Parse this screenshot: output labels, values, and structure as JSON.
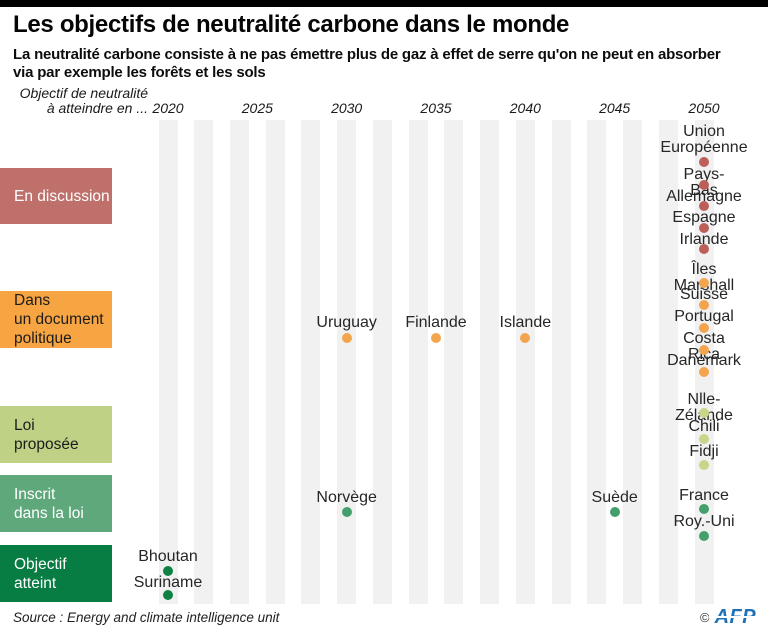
{
  "header": {
    "title": "Les objectifs de neutralité carbone dans le monde",
    "subtitle": "La neutralité carbone consiste à ne pas émettre plus de gaz à effet de serre qu'on ne peut en absorber\nvia par exemple les forêts et les sols"
  },
  "axis": {
    "label": "Objectif de neutralité\nà atteindre en ...",
    "years": [
      "2020",
      "2025",
      "2030",
      "2035",
      "2040",
      "2045",
      "2050"
    ]
  },
  "categories": [
    {
      "id": "en-discussion",
      "label": "En discussion",
      "label_text": "En discussion",
      "color": "#bf706b",
      "text_color": "#ffffff",
      "dot_color": "#bc5f58"
    },
    {
      "id": "document-politique",
      "label": "Dans un document politique",
      "label_text": "Dans\nun document\npolitique",
      "color": "#f6a542",
      "text_color": "#1c1c1c",
      "dot_color": "#f3a54e"
    },
    {
      "id": "loi-proposee",
      "label": "Loi proposée",
      "label_text": "Loi\nproposée",
      "color": "#bfd184",
      "text_color": "#1c1c1c",
      "dot_color": "#c7d687"
    },
    {
      "id": "inscrit-loi",
      "label": "Inscrit dans la loi",
      "label_text": "Inscrit\ndans la loi",
      "color": "#5fa87b",
      "text_color": "#ffffff",
      "dot_color": "#44a06b"
    },
    {
      "id": "objectif-atteint",
      "label": "Objectif atteint",
      "label_text": "Objectif\natteint",
      "color": "#077c43",
      "text_color": "#ffffff",
      "dot_color": "#0f8046"
    }
  ],
  "chart_data": {
    "type": "scatter",
    "title": "Les objectifs de neutralité carbone dans le monde",
    "x_ticks": [
      2020,
      2025,
      2030,
      2035,
      2040,
      2045,
      2050
    ],
    "x_range": [
      2020,
      2050
    ],
    "grid": "light vertical stripes every 2 years",
    "legend_position": "left",
    "points": [
      {
        "label": "Union\nEuropéenne",
        "name": "Union Européenne",
        "year": 2050,
        "status": "En discussion"
      },
      {
        "label": "Pays-Bas",
        "name": "Pays-Bas",
        "year": 2050,
        "status": "En discussion"
      },
      {
        "label": "Allemagne",
        "name": "Allemagne",
        "year": 2050,
        "status": "En discussion"
      },
      {
        "label": "Espagne",
        "name": "Espagne",
        "year": 2050,
        "status": "En discussion"
      },
      {
        "label": "Irlande",
        "name": "Irlande",
        "year": 2050,
        "status": "En discussion"
      },
      {
        "label": "Uruguay",
        "name": "Uruguay",
        "year": 2030,
        "status": "Dans un document politique"
      },
      {
        "label": "Finlande",
        "name": "Finlande",
        "year": 2035,
        "status": "Dans un document politique"
      },
      {
        "label": "Islande",
        "name": "Islande",
        "year": 2040,
        "status": "Dans un document politique"
      },
      {
        "label": "Îles Marshall",
        "name": "Îles Marshall",
        "year": 2050,
        "status": "Dans un document politique"
      },
      {
        "label": "Suisse",
        "name": "Suisse",
        "year": 2050,
        "status": "Dans un document politique"
      },
      {
        "label": "Portugal",
        "name": "Portugal",
        "year": 2050,
        "status": "Dans un document politique"
      },
      {
        "label": "Costa Rica",
        "name": "Costa Rica",
        "year": 2050,
        "status": "Dans un document politique"
      },
      {
        "label": "Danemark",
        "name": "Danemark",
        "year": 2050,
        "status": "Dans un document politique"
      },
      {
        "label": "Nlle-Zélande",
        "name": "Nlle-Zélande",
        "year": 2050,
        "status": "Loi proposée"
      },
      {
        "label": "Chili",
        "name": "Chili",
        "year": 2050,
        "status": "Loi proposée"
      },
      {
        "label": "Fidji",
        "name": "Fidji",
        "year": 2050,
        "status": "Loi proposée"
      },
      {
        "label": "Norvège",
        "name": "Norvège",
        "year": 2030,
        "status": "Inscrit dans la loi"
      },
      {
        "label": "Suède",
        "name": "Suède",
        "year": 2045,
        "status": "Inscrit dans la loi"
      },
      {
        "label": "France",
        "name": "France",
        "year": 2050,
        "status": "Inscrit dans la loi"
      },
      {
        "label": "Roy.-Uni",
        "name": "Roy.-Uni",
        "year": 2050,
        "status": "Inscrit dans la loi"
      },
      {
        "label": "Bhoutan",
        "name": "Bhoutan",
        "year": 2020,
        "status": "Objectif atteint"
      },
      {
        "label": "Suriname",
        "name": "Suriname",
        "year": 2020,
        "status": "Objectif atteint"
      }
    ]
  },
  "footer": {
    "source": "Source : Energy and climate intelligence unit",
    "copyright": "©",
    "agency": "AFP"
  }
}
